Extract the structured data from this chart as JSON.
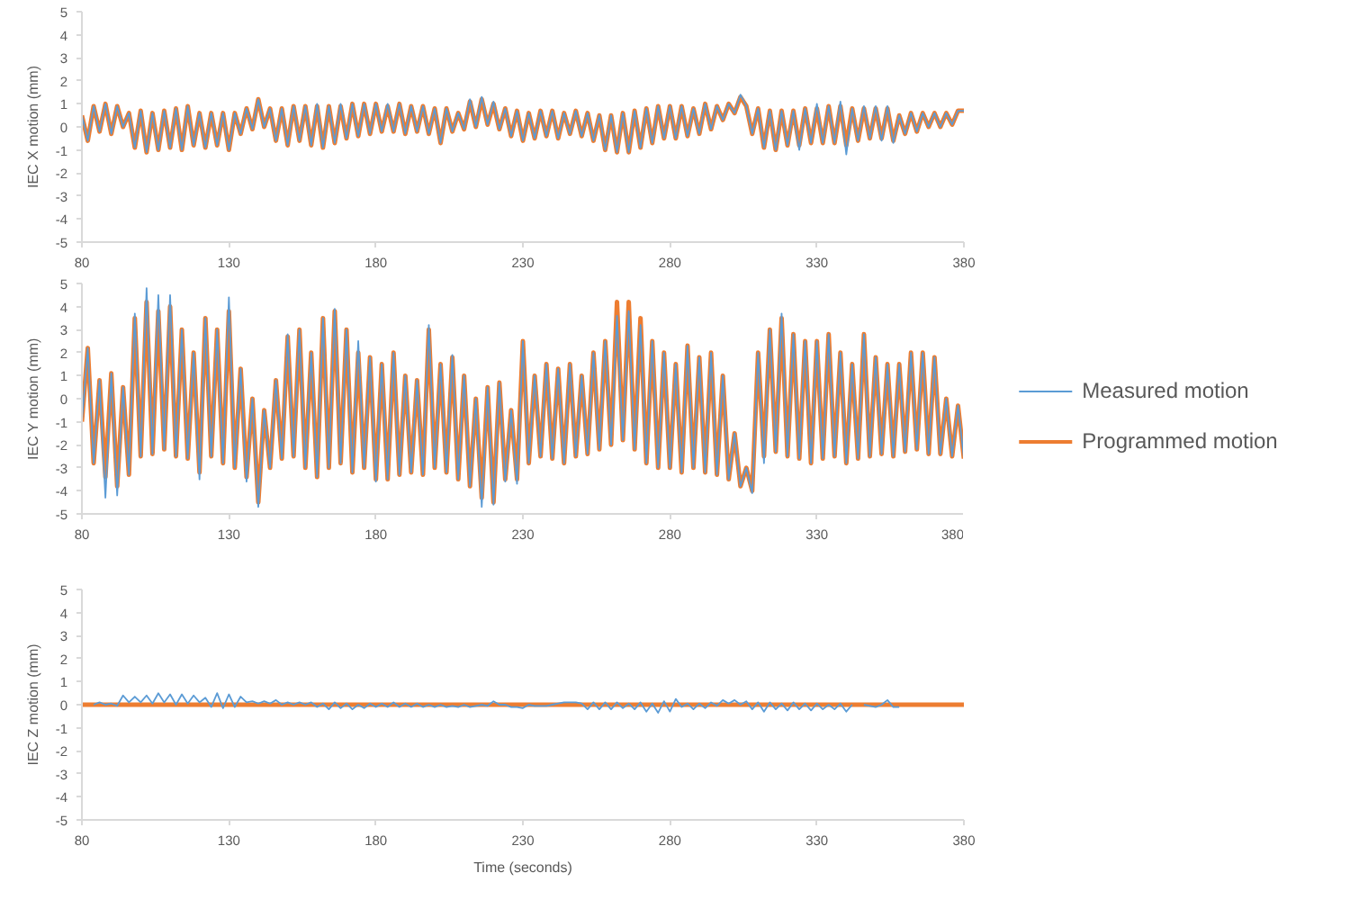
{
  "chart_data": [
    {
      "type": "line",
      "ylabel": "IEC X motion (mm)",
      "xlim": [
        80,
        380
      ],
      "xticks": [
        80,
        130,
        180,
        230,
        280,
        330,
        380
      ],
      "ylim": [
        -5,
        5
      ],
      "yticks": [
        -5,
        -4,
        -3,
        -2,
        -1,
        0,
        1,
        2,
        3,
        4,
        5
      ],
      "x": [
        80,
        82,
        84,
        86,
        88,
        90,
        92,
        94,
        96,
        98,
        100,
        102,
        104,
        106,
        108,
        110,
        112,
        114,
        116,
        118,
        120,
        122,
        124,
        126,
        128,
        130,
        132,
        134,
        136,
        138,
        140,
        142,
        144,
        146,
        148,
        150,
        152,
        154,
        156,
        158,
        160,
        162,
        164,
        166,
        168,
        170,
        172,
        174,
        176,
        178,
        180,
        182,
        184,
        186,
        188,
        190,
        192,
        194,
        196,
        198,
        200,
        202,
        204,
        206,
        208,
        210,
        212,
        214,
        216,
        218,
        220,
        222,
        224,
        226,
        228,
        230,
        232,
        234,
        236,
        238,
        240,
        242,
        244,
        246,
        248,
        250,
        252,
        254,
        256,
        258,
        260,
        262,
        264,
        266,
        268,
        270,
        272,
        274,
        276,
        278,
        280,
        282,
        284,
        286,
        288,
        290,
        292,
        294,
        296,
        298,
        300,
        302,
        304,
        306,
        308,
        310,
        312,
        314,
        316,
        318,
        320,
        322,
        324,
        326,
        328,
        330,
        332,
        334,
        336,
        338,
        340,
        342,
        344,
        346,
        348,
        350,
        352,
        354,
        356,
        358,
        360,
        362,
        364,
        366,
        368,
        370,
        372,
        374,
        376,
        378,
        380
      ],
      "series": [
        {
          "color": "#5b9bd5",
          "values": [
            0.5,
            -0.6,
            0.9,
            -0.2,
            1.0,
            -0.3,
            0.9,
            0.0,
            0.6,
            -0.9,
            0.7,
            -1.1,
            0.6,
            -1.0,
            0.7,
            -0.9,
            0.8,
            -1.0,
            0.9,
            -0.8,
            0.6,
            -0.9,
            0.6,
            -0.8,
            0.6,
            -1.0,
            0.6,
            -0.3,
            0.8,
            -0.1,
            1.2,
            0.0,
            0.8,
            -0.6,
            0.8,
            -0.8,
            0.9,
            -0.6,
            0.9,
            -0.8,
            1.0,
            -0.9,
            0.9,
            -0.7,
            1.0,
            -0.5,
            1.0,
            -0.4,
            1.0,
            -0.3,
            1.0,
            -0.2,
            1.0,
            -0.2,
            1.0,
            -0.3,
            0.9,
            -0.2,
            0.9,
            -0.3,
            0.8,
            -0.7,
            0.8,
            -0.2,
            0.6,
            -0.1,
            1.2,
            0.0,
            1.3,
            0.1,
            1.1,
            -0.1,
            0.8,
            -0.4,
            0.7,
            -0.6,
            0.6,
            -0.5,
            0.7,
            -0.4,
            0.7,
            -0.5,
            0.6,
            -0.3,
            0.7,
            -0.4,
            0.6,
            -0.6,
            0.5,
            -1.0,
            0.5,
            -1.1,
            0.6,
            -1.1,
            0.7,
            -0.9,
            0.8,
            -0.7,
            0.9,
            -0.5,
            0.9,
            -0.5,
            0.9,
            -0.4,
            0.8,
            -0.3,
            1.0,
            -0.1,
            0.9,
            0.3,
            1.0,
            0.6,
            1.4,
            0.9,
            -0.3,
            0.8,
            -0.9,
            0.7,
            -1.0,
            0.7,
            -0.8,
            0.7,
            -1.0,
            0.8,
            -0.7,
            1.0,
            -0.7,
            0.9,
            -0.7,
            1.1,
            -1.2,
            0.8,
            -0.6,
            0.9,
            -0.5,
            0.9,
            -0.6,
            0.9,
            -0.7,
            0.5,
            -0.3,
            0.6,
            -0.2,
            0.6,
            0.0,
            0.6,
            0.0,
            0.6,
            0.1,
            0.7,
            0.7
          ]
        },
        {
          "color": "#ed7d31",
          "values": [
            0.5,
            -0.6,
            0.9,
            -0.2,
            1.0,
            -0.3,
            0.9,
            0.0,
            0.6,
            -0.9,
            0.7,
            -1.1,
            0.6,
            -1.0,
            0.7,
            -0.9,
            0.8,
            -1.0,
            0.9,
            -0.8,
            0.6,
            -0.9,
            0.6,
            -0.8,
            0.6,
            -1.0,
            0.6,
            -0.3,
            0.8,
            -0.1,
            1.2,
            0.0,
            0.8,
            -0.6,
            0.8,
            -0.8,
            0.9,
            -0.6,
            0.9,
            -0.8,
            0.9,
            -0.9,
            0.9,
            -0.7,
            0.9,
            -0.5,
            1.0,
            -0.4,
            1.0,
            -0.3,
            1.0,
            -0.2,
            0.9,
            -0.2,
            1.0,
            -0.3,
            0.9,
            -0.2,
            0.9,
            -0.3,
            0.8,
            -0.7,
            0.8,
            -0.2,
            0.6,
            -0.1,
            1.1,
            0.0,
            1.2,
            0.1,
            1.0,
            -0.1,
            0.8,
            -0.4,
            0.7,
            -0.6,
            0.6,
            -0.5,
            0.7,
            -0.4,
            0.7,
            -0.5,
            0.6,
            -0.3,
            0.7,
            -0.4,
            0.6,
            -0.6,
            0.5,
            -1.0,
            0.5,
            -1.1,
            0.6,
            -1.1,
            0.7,
            -0.9,
            0.8,
            -0.7,
            0.9,
            -0.5,
            0.9,
            -0.5,
            0.9,
            -0.4,
            0.8,
            -0.3,
            1.0,
            -0.1,
            0.9,
            0.3,
            1.0,
            0.6,
            1.3,
            0.9,
            -0.3,
            0.8,
            -0.9,
            0.7,
            -1.0,
            0.7,
            -0.8,
            0.7,
            -0.8,
            0.8,
            -0.7,
            0.8,
            -0.7,
            0.9,
            -0.7,
            0.9,
            -0.8,
            0.8,
            -0.6,
            0.8,
            -0.5,
            0.8,
            -0.5,
            0.8,
            -0.6,
            0.5,
            -0.3,
            0.6,
            -0.2,
            0.6,
            0.0,
            0.6,
            0.0,
            0.6,
            0.1,
            0.7,
            0.7
          ]
        }
      ]
    },
    {
      "type": "line",
      "ylabel": "IEC Y motion (mm)",
      "xlim": [
        80,
        380
      ],
      "xticks": [
        80,
        130,
        180,
        230,
        280,
        330,
        380
      ],
      "ylim": [
        -5,
        5
      ],
      "yticks": [
        -5,
        -4,
        -3,
        -2,
        -1,
        0,
        1,
        2,
        3,
        4,
        5
      ],
      "legend": "right",
      "x": [
        80,
        82,
        84,
        86,
        88,
        90,
        92,
        94,
        96,
        98,
        100,
        102,
        104,
        106,
        108,
        110,
        112,
        114,
        116,
        118,
        120,
        122,
        124,
        126,
        128,
        130,
        132,
        134,
        136,
        138,
        140,
        142,
        144,
        146,
        148,
        150,
        152,
        154,
        156,
        158,
        160,
        162,
        164,
        166,
        168,
        170,
        172,
        174,
        176,
        178,
        180,
        182,
        184,
        186,
        188,
        190,
        192,
        194,
        196,
        198,
        200,
        202,
        204,
        206,
        208,
        210,
        212,
        214,
        216,
        218,
        220,
        222,
        224,
        226,
        228,
        230,
        232,
        234,
        236,
        238,
        240,
        242,
        244,
        246,
        248,
        250,
        252,
        254,
        256,
        258,
        260,
        262,
        264,
        266,
        268,
        270,
        272,
        274,
        276,
        278,
        280,
        282,
        284,
        286,
        288,
        290,
        292,
        294,
        296,
        298,
        300,
        302,
        304,
        306,
        308,
        310,
        312,
        314,
        316,
        318,
        320,
        322,
        324,
        326,
        328,
        330,
        332,
        334,
        336,
        338,
        340,
        342,
        344,
        346,
        348,
        350,
        352,
        354,
        356,
        358,
        360,
        362,
        364,
        366,
        368,
        370,
        372,
        374,
        376,
        378,
        380
      ],
      "series": [
        {
          "name": "Measured motion",
          "color": "#5b9bd5",
          "values": [
            -1.0,
            2.2,
            -2.8,
            0.8,
            -4.3,
            1.1,
            -4.2,
            0.5,
            -3.3,
            3.7,
            -2.5,
            4.8,
            -2.4,
            4.5,
            -2.2,
            4.5,
            -2.5,
            3.0,
            -2.6,
            2.0,
            -3.5,
            3.5,
            -2.5,
            3.0,
            -2.8,
            4.4,
            -3.0,
            1.3,
            -3.6,
            0.0,
            -4.7,
            -0.5,
            -3.0,
            0.8,
            -2.6,
            2.8,
            -2.5,
            3.0,
            -3.0,
            2.0,
            -3.4,
            3.5,
            -3.0,
            3.9,
            -2.8,
            3.0,
            -3.2,
            2.5,
            -3.0,
            1.8,
            -3.6,
            1.5,
            -3.5,
            2.0,
            -3.3,
            1.0,
            -3.2,
            0.8,
            -3.3,
            3.2,
            -3.0,
            1.5,
            -3.2,
            1.9,
            -3.5,
            1.0,
            -3.8,
            0.0,
            -4.7,
            0.5,
            -4.6,
            0.7,
            -3.6,
            -0.5,
            -3.7,
            2.5,
            -2.8,
            1.0,
            -2.5,
            1.5,
            -2.6,
            1.3,
            -2.8,
            1.5,
            -2.5,
            1.0,
            -2.4,
            2.0,
            -2.2,
            2.5,
            -2.0,
            3.6,
            -1.8,
            3.8,
            -2.2,
            3.2,
            -2.8,
            2.5,
            -3.0,
            2.0,
            -3.0,
            1.5,
            -3.2,
            2.3,
            -3.0,
            1.8,
            -3.2,
            2.0,
            -3.3,
            1.0,
            -3.5,
            -1.5,
            -3.8,
            -3.0,
            -4.1,
            2.0,
            -2.8,
            3.0,
            -2.3,
            3.7,
            -2.5,
            2.8,
            -2.6,
            2.5,
            -2.8,
            2.5,
            -2.6,
            2.8,
            -2.5,
            2.0,
            -2.8,
            1.5,
            -2.6,
            2.8,
            -2.5,
            1.8,
            -2.4,
            1.5,
            -2.5,
            1.5,
            -2.3,
            2.0,
            -2.2,
            2.0,
            -2.4,
            1.8,
            -2.4,
            0.0,
            -2.5,
            -0.3,
            -2.6
          ]
        },
        {
          "name": "Programmed motion",
          "color": "#ed7d31",
          "values": [
            -1.0,
            2.2,
            -2.8,
            0.8,
            -3.4,
            1.1,
            -3.8,
            0.5,
            -3.3,
            3.5,
            -2.5,
            4.2,
            -2.4,
            3.8,
            -2.2,
            4.0,
            -2.5,
            3.0,
            -2.6,
            2.0,
            -3.2,
            3.5,
            -2.5,
            3.0,
            -2.8,
            3.8,
            -3.0,
            1.3,
            -3.4,
            0.0,
            -4.5,
            -0.5,
            -3.0,
            0.8,
            -2.6,
            2.7,
            -2.5,
            3.0,
            -3.0,
            2.0,
            -3.4,
            3.5,
            -3.0,
            3.8,
            -2.8,
            3.0,
            -3.2,
            2.0,
            -3.0,
            1.8,
            -3.5,
            1.5,
            -3.5,
            2.0,
            -3.3,
            1.0,
            -3.2,
            0.8,
            -3.3,
            3.0,
            -3.0,
            1.5,
            -3.2,
            1.8,
            -3.5,
            1.0,
            -3.8,
            0.0,
            -4.3,
            0.5,
            -4.5,
            0.7,
            -3.5,
            -0.5,
            -3.5,
            2.5,
            -2.8,
            1.0,
            -2.5,
            1.5,
            -2.6,
            1.3,
            -2.8,
            1.5,
            -2.5,
            1.0,
            -2.4,
            2.0,
            -2.2,
            2.5,
            -2.0,
            4.2,
            -1.8,
            4.2,
            -2.2,
            3.5,
            -2.8,
            2.5,
            -3.0,
            2.0,
            -3.0,
            1.5,
            -3.2,
            2.3,
            -3.0,
            1.8,
            -3.2,
            2.0,
            -3.3,
            1.0,
            -3.5,
            -1.5,
            -3.8,
            -3.0,
            -4.0,
            2.0,
            -2.5,
            3.0,
            -2.3,
            3.5,
            -2.5,
            2.8,
            -2.6,
            2.5,
            -2.8,
            2.5,
            -2.6,
            2.8,
            -2.5,
            2.0,
            -2.8,
            1.5,
            -2.6,
            2.8,
            -2.5,
            1.8,
            -2.4,
            1.5,
            -2.5,
            1.5,
            -2.3,
            2.0,
            -2.2,
            2.0,
            -2.4,
            1.8,
            -2.4,
            0.0,
            -2.5,
            -0.3,
            -2.6
          ]
        }
      ]
    },
    {
      "type": "line",
      "ylabel": "IEC Z motion (mm)",
      "xlabel": "Time (seconds)",
      "xlim": [
        80,
        380
      ],
      "xticks": [
        80,
        130,
        180,
        230,
        280,
        330,
        380
      ],
      "ylim": [
        -5,
        5
      ],
      "yticks": [
        -5,
        -4,
        -3,
        -2,
        -1,
        0,
        1,
        2,
        3,
        4,
        5
      ],
      "series": [
        {
          "color": "#5b9bd5",
          "x": [
            84,
            86,
            88,
            90,
            92,
            94,
            96,
            98,
            100,
            102,
            104,
            106,
            108,
            110,
            112,
            114,
            116,
            118,
            120,
            122,
            124,
            126,
            128,
            130,
            132,
            134,
            136,
            138,
            140,
            142,
            144,
            146,
            148,
            150,
            152,
            154,
            156,
            158,
            160,
            162,
            164,
            166,
            168,
            170,
            172,
            174,
            176,
            178,
            180,
            182,
            184,
            186,
            188,
            190,
            192,
            194,
            196,
            198,
            200,
            202,
            204,
            206,
            208,
            210,
            212,
            214,
            216,
            218,
            220,
            222,
            224,
            226,
            228,
            230,
            232,
            234,
            236,
            238,
            240,
            242,
            244,
            246,
            248,
            250,
            252,
            254,
            256,
            258,
            260,
            262,
            264,
            266,
            268,
            270,
            272,
            274,
            276,
            278,
            280,
            282,
            284,
            286,
            288,
            290,
            292,
            294,
            296,
            298,
            300,
            302,
            304,
            306,
            308,
            310,
            312,
            314,
            316,
            318,
            320,
            322,
            324,
            326,
            328,
            330,
            332,
            334,
            336,
            338,
            340,
            342,
            344,
            346,
            348,
            350,
            352,
            354,
            356,
            358
          ],
          "values": [
            0.0,
            0.1,
            0.0,
            0.05,
            -0.05,
            0.4,
            0.1,
            0.35,
            0.1,
            0.4,
            0.05,
            0.5,
            0.1,
            0.45,
            0.0,
            0.45,
            0.05,
            0.4,
            0.1,
            0.3,
            -0.1,
            0.5,
            -0.15,
            0.45,
            -0.1,
            0.35,
            0.1,
            0.15,
            0.05,
            0.15,
            0.05,
            0.2,
            0.0,
            0.1,
            0.0,
            0.1,
            0.0,
            0.1,
            -0.1,
            0.05,
            -0.2,
            0.1,
            -0.15,
            0.05,
            -0.2,
            0.0,
            -0.15,
            0.05,
            -0.1,
            0.05,
            -0.1,
            0.1,
            -0.1,
            0.05,
            -0.1,
            0.05,
            -0.1,
            0.0,
            -0.1,
            0.0,
            -0.1,
            -0.05,
            -0.1,
            0.0,
            -0.1,
            -0.05,
            0.0,
            -0.05,
            0.15,
            0.0,
            0.0,
            -0.1,
            -0.1,
            -0.15,
            0.0,
            -0.05,
            -0.05,
            -0.05,
            0.0,
            0.05,
            0.1,
            0.1,
            0.1,
            0.05,
            -0.2,
            0.1,
            -0.2,
            0.1,
            -0.2,
            0.1,
            -0.15,
            0.05,
            -0.2,
            0.1,
            -0.3,
            0.05,
            -0.35,
            0.15,
            -0.3,
            0.25,
            -0.1,
            0.05,
            -0.2,
            0.05,
            -0.15,
            0.1,
            -0.05,
            0.2,
            0.05,
            0.2,
            0.0,
            0.15,
            -0.2,
            0.1,
            -0.3,
            0.1,
            -0.2,
            0.05,
            -0.25,
            0.1,
            -0.2,
            0.05,
            -0.25,
            0.05,
            -0.2,
            0.0,
            -0.2,
            0.05,
            -0.3,
            0.0,
            null,
            0.0,
            -0.05,
            -0.1,
            0.0,
            0.2,
            -0.1,
            -0.1
          ]
        },
        {
          "color": "#ed7d31",
          "x": [
            80,
            380
          ],
          "values": [
            0,
            0
          ]
        }
      ]
    }
  ]
}
